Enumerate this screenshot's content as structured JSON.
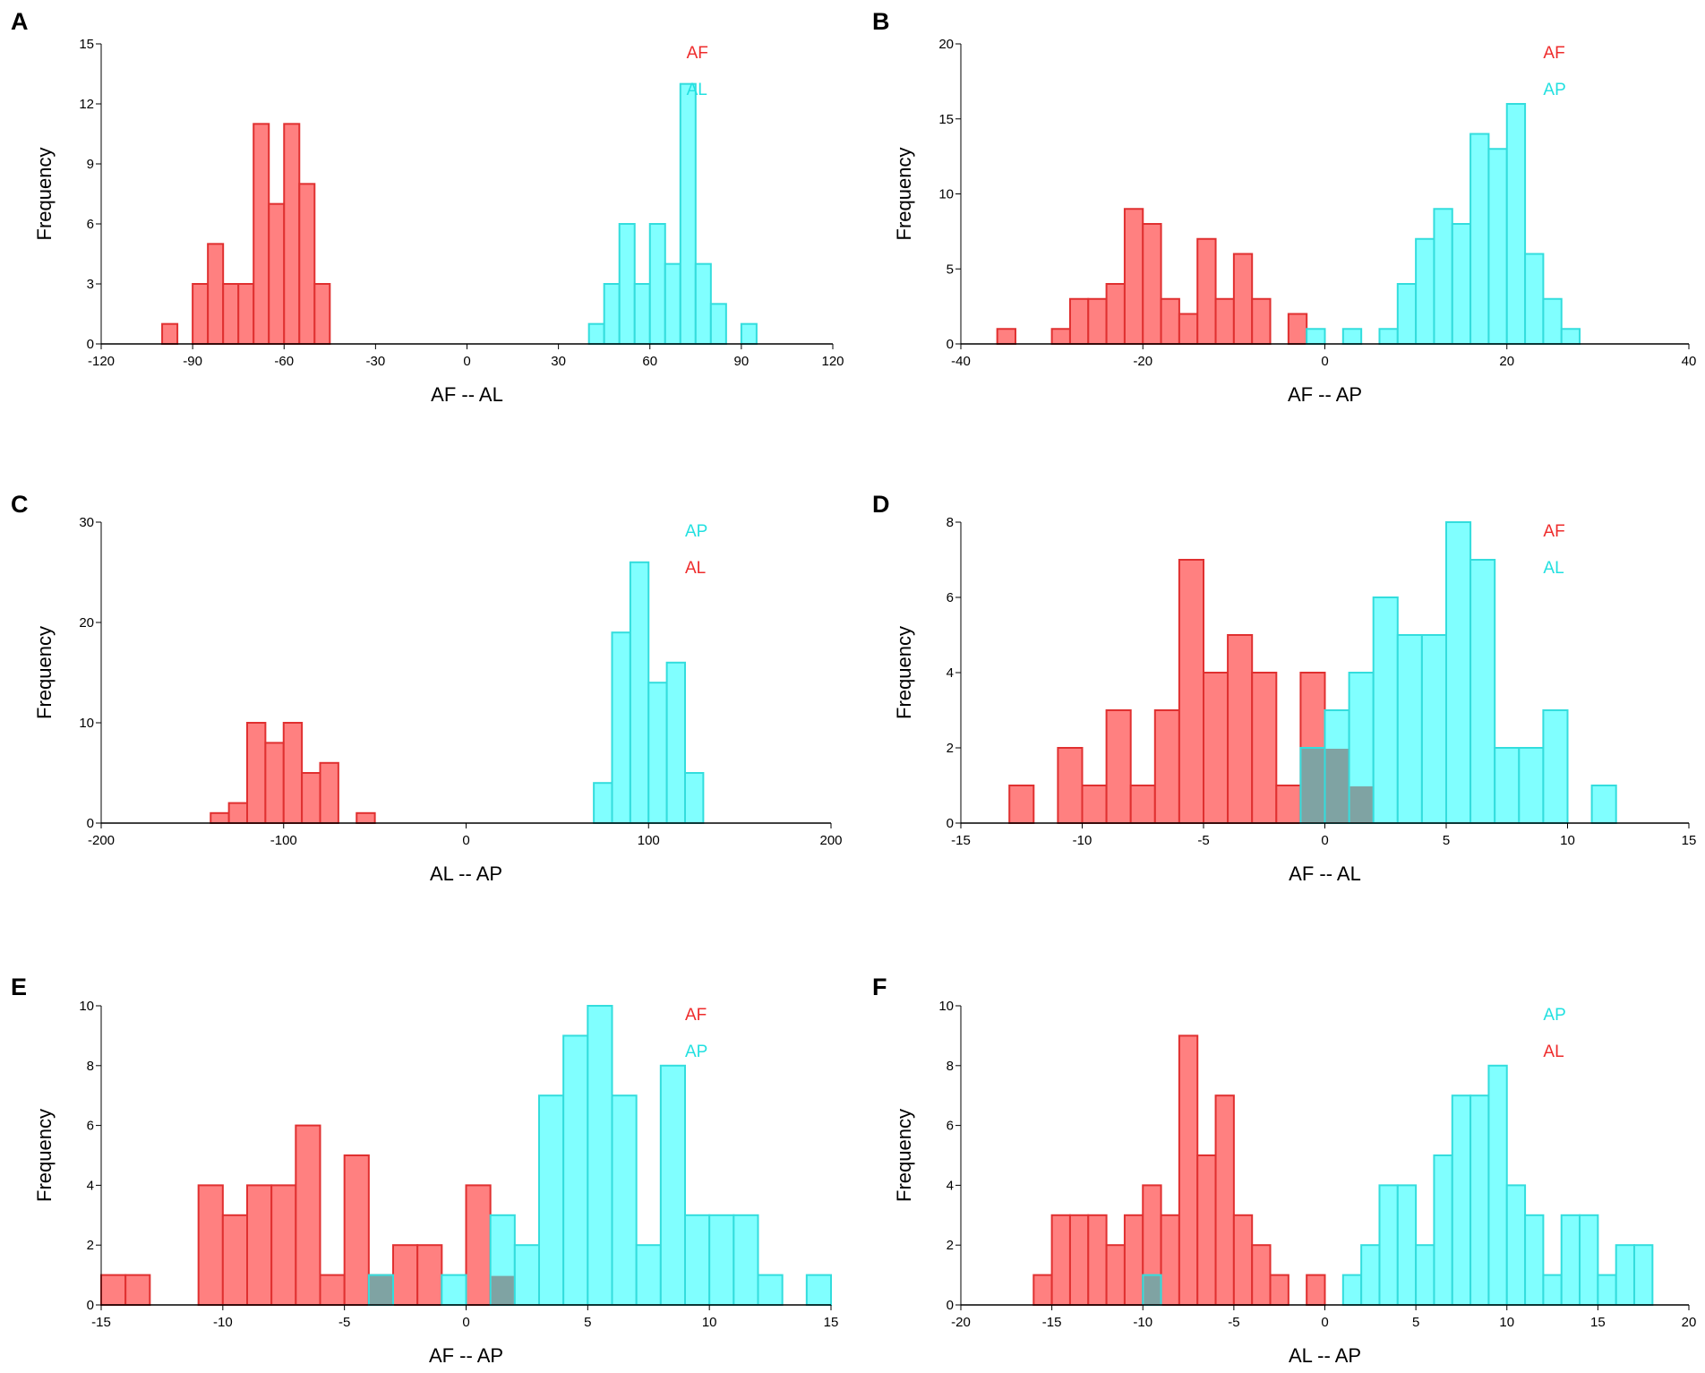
{
  "colors": {
    "red_fill": "#ff8080",
    "red_stroke": "#e03030",
    "red_text": "#ee2c2c",
    "cyan_fill": "#80ffff",
    "cyan_stroke": "#33dddd",
    "cyan_text": "#22e0e0",
    "overlap_fill": "#7fa3a3"
  },
  "chart_data": [
    {
      "type": "bar",
      "panel": "A",
      "xlabel": "AF -- AL",
      "ylabel": "Frequency",
      "xlim": [
        -120,
        120
      ],
      "ylim": [
        0,
        15
      ],
      "xticks": [
        -120,
        -90,
        -60,
        -30,
        0,
        30,
        60,
        90,
        120
      ],
      "yticks": [
        0,
        3,
        6,
        9,
        12,
        15
      ],
      "bin_width": 5,
      "legend": [
        {
          "label": "AF",
          "color": "red"
        },
        {
          "label": "AL",
          "color": "cyan"
        }
      ],
      "series": [
        {
          "name": "AF",
          "color": "red",
          "bin_starts": [
            -100,
            -90,
            -85,
            -80,
            -75,
            -70,
            -65,
            -60,
            -55,
            -50
          ],
          "values": [
            1,
            3,
            5,
            3,
            3,
            11,
            7,
            11,
            8,
            3
          ]
        },
        {
          "name": "AL",
          "color": "cyan",
          "bin_starts": [
            40,
            45,
            50,
            55,
            60,
            65,
            70,
            75,
            80,
            90
          ],
          "values": [
            1,
            3,
            6,
            3,
            6,
            4,
            13,
            4,
            2,
            1
          ]
        }
      ]
    },
    {
      "type": "bar",
      "panel": "B",
      "xlabel": "AF -- AP",
      "ylabel": "Frequency",
      "xlim": [
        -40,
        40
      ],
      "ylim": [
        0,
        20
      ],
      "xticks": [
        -40,
        -20,
        0,
        20,
        40
      ],
      "yticks": [
        0,
        5,
        10,
        15,
        20
      ],
      "bin_width": 2,
      "legend": [
        {
          "label": "AF",
          "color": "red"
        },
        {
          "label": "AP",
          "color": "cyan"
        }
      ],
      "series": [
        {
          "name": "AF",
          "color": "red",
          "bin_starts": [
            -36,
            -30,
            -28,
            -26,
            -24,
            -22,
            -20,
            -18,
            -16,
            -14,
            -12,
            -10,
            -8,
            -4
          ],
          "values": [
            1,
            1,
            3,
            3,
            4,
            9,
            8,
            3,
            2,
            7,
            3,
            6,
            3,
            2
          ]
        },
        {
          "name": "AP",
          "color": "cyan",
          "bin_starts": [
            -2,
            2,
            6,
            8,
            10,
            12,
            14,
            16,
            18,
            20,
            22,
            24,
            26
          ],
          "values": [
            1,
            1,
            1,
            4,
            7,
            9,
            8,
            14,
            13,
            16,
            6,
            3,
            1
          ]
        }
      ]
    },
    {
      "type": "bar",
      "panel": "C",
      "xlabel": "AL -- AP",
      "ylabel": "Frequency",
      "xlim": [
        -200,
        200
      ],
      "ylim": [
        0,
        30
      ],
      "xticks": [
        -200,
        -100,
        0,
        100,
        200
      ],
      "yticks": [
        0,
        10,
        20,
        30
      ],
      "bin_width": 10,
      "legend": [
        {
          "label": "AP",
          "color": "cyan"
        },
        {
          "label": "AL",
          "color": "red"
        }
      ],
      "series": [
        {
          "name": "AL",
          "color": "red",
          "bin_starts": [
            -140,
            -130,
            -120,
            -110,
            -100,
            -90,
            -80,
            -60
          ],
          "values": [
            1,
            2,
            10,
            8,
            10,
            5,
            6,
            1
          ]
        },
        {
          "name": "AP",
          "color": "cyan",
          "bin_starts": [
            70,
            80,
            90,
            100,
            110,
            120
          ],
          "values": [
            4,
            19,
            26,
            14,
            16,
            5
          ]
        }
      ]
    },
    {
      "type": "bar",
      "panel": "D",
      "xlabel": "AF -- AL",
      "ylabel": "Frequency",
      "xlim": [
        -15,
        15
      ],
      "ylim": [
        0,
        8
      ],
      "xticks": [
        -15,
        -10,
        -5,
        0,
        5,
        10,
        15
      ],
      "yticks": [
        0,
        2,
        4,
        6,
        8
      ],
      "bin_width": 1,
      "legend": [
        {
          "label": "AF",
          "color": "red"
        },
        {
          "label": "AL",
          "color": "cyan"
        }
      ],
      "series": [
        {
          "name": "AF",
          "color": "red",
          "bin_starts": [
            -13,
            -11,
            -10,
            -9,
            -8,
            -7,
            -6,
            -5,
            -4,
            -3,
            -2,
            -1,
            0,
            1
          ],
          "values": [
            1,
            2,
            1,
            3,
            1,
            3,
            7,
            4,
            5,
            4,
            1,
            4,
            2,
            1
          ]
        },
        {
          "name": "AL",
          "color": "cyan",
          "bin_starts": [
            -1,
            0,
            1,
            2,
            3,
            4,
            5,
            6,
            7,
            8,
            9,
            11
          ],
          "values": [
            2,
            3,
            4,
            6,
            5,
            5,
            8,
            7,
            2,
            2,
            3,
            1
          ]
        }
      ]
    },
    {
      "type": "bar",
      "panel": "E",
      "xlabel": "AF -- AP",
      "ylabel": "Frequency",
      "xlim": [
        -15,
        15
      ],
      "ylim": [
        0,
        10
      ],
      "xticks": [
        -15,
        -10,
        -5,
        0,
        5,
        10,
        15
      ],
      "yticks": [
        0,
        2,
        4,
        6,
        8,
        10
      ],
      "bin_width": 1,
      "legend": [
        {
          "label": "AF",
          "color": "red"
        },
        {
          "label": "AP",
          "color": "cyan"
        }
      ],
      "series": [
        {
          "name": "AF",
          "color": "red",
          "bin_starts": [
            -15,
            -14,
            -11,
            -10,
            -9,
            -8,
            -7,
            -6,
            -5,
            -4,
            -3,
            -2,
            0,
            1
          ],
          "values": [
            1,
            1,
            4,
            3,
            4,
            4,
            6,
            1,
            5,
            1,
            2,
            2,
            4,
            1
          ]
        },
        {
          "name": "AP",
          "color": "cyan",
          "bin_starts": [
            -4,
            -1,
            1,
            2,
            3,
            4,
            5,
            6,
            7,
            8,
            9,
            10,
            11,
            12,
            14
          ],
          "values": [
            1,
            1,
            3,
            2,
            7,
            9,
            10,
            7,
            2,
            8,
            3,
            3,
            3,
            1,
            1
          ]
        }
      ]
    },
    {
      "type": "bar",
      "panel": "F",
      "xlabel": "AL -- AP",
      "ylabel": "Frequency",
      "xlim": [
        -20,
        20
      ],
      "ylim": [
        0,
        10
      ],
      "xticks": [
        -20,
        -15,
        -10,
        -5,
        0,
        5,
        10,
        15,
        20
      ],
      "yticks": [
        0,
        2,
        4,
        6,
        8,
        10
      ],
      "bin_width": 1,
      "legend": [
        {
          "label": "AP",
          "color": "cyan"
        },
        {
          "label": "AL",
          "color": "red"
        }
      ],
      "series": [
        {
          "name": "AL",
          "color": "red",
          "bin_starts": [
            -16,
            -15,
            -14,
            -13,
            -12,
            -11,
            -10,
            -9,
            -8,
            -7,
            -6,
            -5,
            -4,
            -3,
            -1
          ],
          "values": [
            1,
            3,
            3,
            3,
            2,
            3,
            4,
            3,
            9,
            5,
            7,
            3,
            2,
            1,
            1
          ]
        },
        {
          "name": "AP",
          "color": "cyan",
          "bin_starts": [
            -10,
            1,
            2,
            3,
            4,
            5,
            6,
            7,
            8,
            9,
            10,
            11,
            12,
            13,
            14,
            15,
            16,
            17
          ],
          "values": [
            1,
            1,
            2,
            4,
            4,
            2,
            5,
            7,
            7,
            8,
            4,
            3,
            1,
            3,
            3,
            1,
            2,
            2
          ]
        }
      ]
    }
  ]
}
